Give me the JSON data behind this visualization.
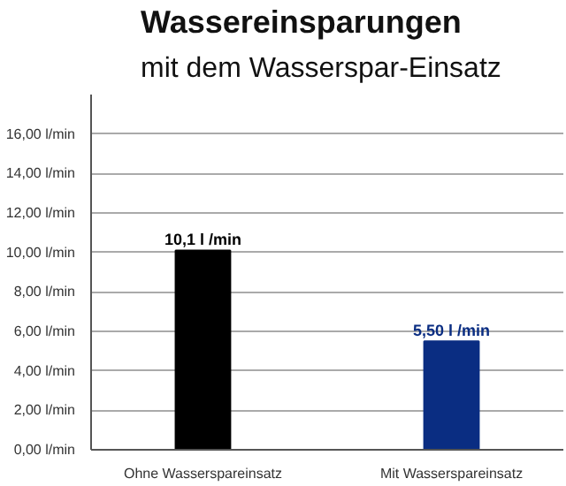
{
  "chart_data": {
    "type": "bar",
    "title": "Wassereinsparungen",
    "subtitle": "mit dem Wasserspar-Einsatz",
    "categories": [
      "Ohne Wasserspareinsatz",
      "Mit Wasserspareinsatz"
    ],
    "values": [
      10.1,
      5.5
    ],
    "colors": [
      "#000000",
      "#0a2d82"
    ],
    "value_labels": [
      "10,1 l /min",
      "5,50 l /min"
    ],
    "ylim": [
      0,
      18
    ],
    "yticks": [
      {
        "value": 0,
        "label": "0,00 l/min"
      },
      {
        "value": 2,
        "label": "2,00 l/min"
      },
      {
        "value": 4,
        "label": "4,00 l/min"
      },
      {
        "value": 6,
        "label": "6,00 l/min"
      },
      {
        "value": 8,
        "label": "8,00 l/min"
      },
      {
        "value": 10,
        "label": "10,00 l/min"
      },
      {
        "value": 12,
        "label": "12,00 l/min"
      },
      {
        "value": 14,
        "label": "14,00 l/min"
      },
      {
        "value": 16,
        "label": "16,00 l/min"
      }
    ],
    "grid": "y"
  }
}
